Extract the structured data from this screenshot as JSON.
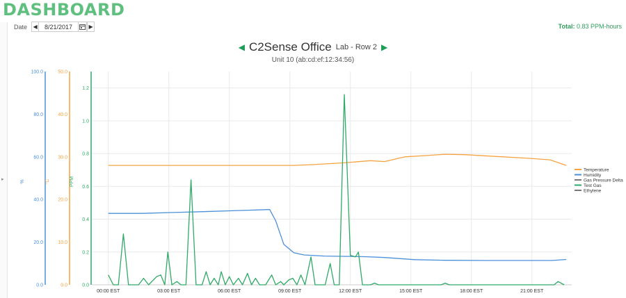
{
  "page": {
    "title": "DASHBOARD"
  },
  "date_picker": {
    "label": "Date",
    "value": "8/21/2017",
    "prev_icon": "caret-left-icon",
    "next_icon": "caret-right-icon",
    "calendar_icon": "calendar-icon"
  },
  "total": {
    "label": "Total:",
    "value": "0.83 PPM-hours"
  },
  "chart_header": {
    "site": "C2Sense Office",
    "location": "Lab - Row 2",
    "unit": "Unit 10 (ab:cd:ef:12:34:56)"
  },
  "colors": {
    "temperature": "#f5a340",
    "humidity": "#4a90d9",
    "gas_pressure_delta": "#777777",
    "test_gas": "#2eaa66",
    "ethylene": "#777777",
    "brand": "#5fbf7f"
  },
  "chart_data": {
    "type": "line",
    "x_ticks": [
      "00:00 EST",
      "03:00 EST",
      "06:00 EST",
      "09:00 EST",
      "12:00 EST",
      "15:00 EST",
      "18:00 EST",
      "21:00 EST"
    ],
    "x_range_hours": [
      0,
      24
    ],
    "axes": [
      {
        "id": "humidity",
        "label": "%",
        "ticks": [
          "0.0",
          "20.0",
          "40.0",
          "60.0",
          "80.0",
          "100.0"
        ],
        "range": [
          0,
          100
        ]
      },
      {
        "id": "temperature",
        "label": "°C",
        "ticks": [
          "0.0",
          "10.0",
          "20.0",
          "30.0",
          "40.0",
          "50.0"
        ],
        "range": [
          0,
          50
        ]
      },
      {
        "id": "ppm",
        "label": "PPM",
        "ticks": [
          "0.0",
          "0.2",
          "0.4",
          "0.6",
          "0.8",
          "1.0",
          "1.2"
        ],
        "range": [
          0,
          1.3
        ]
      }
    ],
    "legend": [
      "Temperature",
      "Humidity",
      "Gas Pressure Delta",
      "Test Gas",
      "Ethylene"
    ],
    "legend_position": "right",
    "series": [
      {
        "name": "Temperature",
        "axis": "temperature",
        "points": [
          [
            1.3,
            28.0
          ],
          [
            4,
            28.0
          ],
          [
            7,
            28.0
          ],
          [
            9.5,
            28.0
          ],
          [
            10.5,
            28.0
          ],
          [
            11.5,
            28.2
          ],
          [
            13,
            28.6
          ],
          [
            14.3,
            29.1
          ],
          [
            15,
            28.9
          ],
          [
            16,
            30.0
          ],
          [
            17,
            30.3
          ],
          [
            18,
            30.6
          ],
          [
            19,
            30.5
          ],
          [
            20.5,
            30.1
          ],
          [
            22,
            29.7
          ],
          [
            23.2,
            29.3
          ],
          [
            24,
            28.0
          ]
        ]
      },
      {
        "name": "Humidity",
        "axis": "humidity",
        "points": [
          [
            1.3,
            33.5
          ],
          [
            3,
            33.5
          ],
          [
            4.5,
            33.9
          ],
          [
            6,
            34.3
          ],
          [
            8,
            34.9
          ],
          [
            9.3,
            35.3
          ],
          [
            9.6,
            30
          ],
          [
            10,
            19
          ],
          [
            10.5,
            15
          ],
          [
            11,
            14
          ],
          [
            12,
            13.5
          ],
          [
            14,
            13.2
          ],
          [
            15,
            12.8
          ],
          [
            16.5,
            11.8
          ],
          [
            18,
            11.5
          ],
          [
            20,
            11.4
          ],
          [
            22,
            11.4
          ],
          [
            23.3,
            11.4
          ],
          [
            24,
            11.9
          ]
        ]
      },
      {
        "name": "Gas Pressure Delta",
        "axis": "ppm",
        "points": []
      },
      {
        "name": "Test Gas",
        "axis": "ppm",
        "points": [
          [
            1.3,
            0.06
          ],
          [
            1.55,
            0
          ],
          [
            1.8,
            0
          ],
          [
            2.05,
            0.31
          ],
          [
            2.3,
            0
          ],
          [
            2.8,
            0
          ],
          [
            3.05,
            0.04
          ],
          [
            3.3,
            0
          ],
          [
            3.7,
            0.05
          ],
          [
            3.9,
            0.06
          ],
          [
            4.1,
            0
          ],
          [
            4.25,
            0.2
          ],
          [
            4.45,
            0
          ],
          [
            4.7,
            0.02
          ],
          [
            4.9,
            0
          ],
          [
            5.15,
            0
          ],
          [
            5.4,
            0.64
          ],
          [
            5.65,
            0
          ],
          [
            5.95,
            0
          ],
          [
            6.15,
            0.08
          ],
          [
            6.35,
            0
          ],
          [
            6.55,
            0.04
          ],
          [
            6.75,
            0
          ],
          [
            6.9,
            0.08
          ],
          [
            7.1,
            0
          ],
          [
            7.3,
            0.05
          ],
          [
            7.5,
            0
          ],
          [
            7.75,
            0.04
          ],
          [
            7.95,
            0
          ],
          [
            8.2,
            0.07
          ],
          [
            8.4,
            0
          ],
          [
            8.6,
            0.04
          ],
          [
            8.8,
            0
          ],
          [
            9.1,
            0
          ],
          [
            9.4,
            0.06
          ],
          [
            9.6,
            0
          ],
          [
            9.85,
            0.02
          ],
          [
            10,
            0
          ],
          [
            10.25,
            0.03
          ],
          [
            10.45,
            0.04
          ],
          [
            10.65,
            0
          ],
          [
            10.85,
            0.06
          ],
          [
            11.05,
            0
          ],
          [
            11.35,
            0.17
          ],
          [
            11.55,
            0
          ],
          [
            12.05,
            0
          ],
          [
            12.3,
            0.13
          ],
          [
            12.5,
            0
          ],
          [
            12.75,
            0
          ],
          [
            13.0,
            1.16
          ],
          [
            13.3,
            0.18
          ],
          [
            13.55,
            0.17
          ],
          [
            13.7,
            0.2
          ],
          [
            13.9,
            0
          ],
          [
            14.3,
            0
          ],
          [
            14.5,
            0.01
          ],
          [
            14.7,
            0
          ],
          [
            17.8,
            0
          ],
          [
            18.0,
            0.01
          ],
          [
            18.2,
            0
          ],
          [
            23.4,
            0
          ],
          [
            23.6,
            0.02
          ],
          [
            23.9,
            0
          ]
        ]
      },
      {
        "name": "Ethylene",
        "axis": "ppm",
        "points": []
      }
    ]
  }
}
